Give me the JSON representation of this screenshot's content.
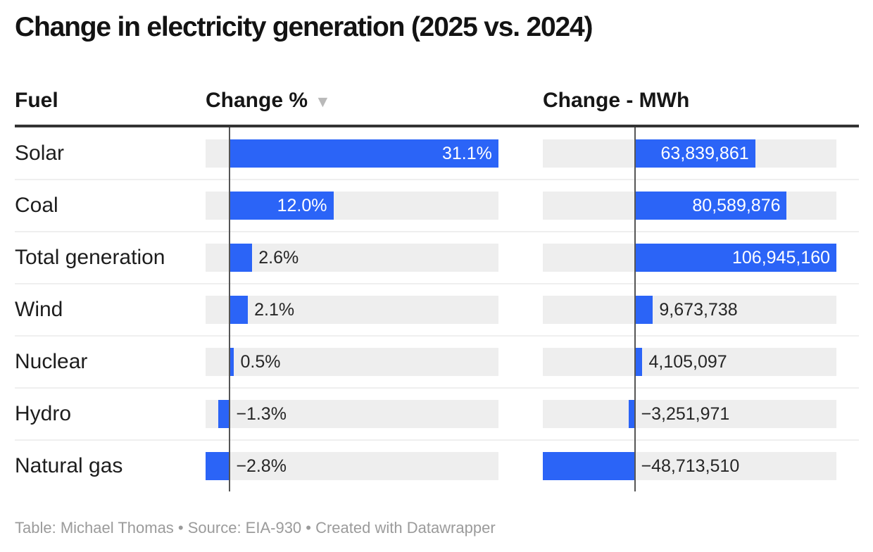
{
  "title": "Change in electricity generation (2025 vs. 2024)",
  "table": {
    "fuel_header": "Fuel",
    "pct_header": "Change %",
    "mwh_header": "Change - MWh",
    "sort_icon": "▼",
    "sorted_by": "Change %",
    "sort_direction": "descending"
  },
  "footer": "Table: Michael Thomas • Source: EIA-930 • Created with Datawrapper",
  "colors": {
    "bar_blue": "#2b64f7",
    "track_gray": "#eeeeee",
    "baseline_gray": "#555555",
    "header_rule": "#333333"
  },
  "chart_data": {
    "type": "bar",
    "orientation": "horizontal",
    "title": "Change in electricity generation (2025 vs. 2024)",
    "categories": [
      "Solar",
      "Coal",
      "Total generation",
      "Wind",
      "Nuclear",
      "Hydro",
      "Natural gas"
    ],
    "series": [
      {
        "name": "Change %",
        "values": [
          31.1,
          12.0,
          2.6,
          2.1,
          0.5,
          -1.3,
          -2.8
        ],
        "labels": [
          "31.1%",
          "12.0%",
          "2.6%",
          "2.1%",
          "0.5%",
          "−1.3%",
          "−2.8%"
        ],
        "xlim": [
          -2.8,
          31.1
        ]
      },
      {
        "name": "Change - MWh",
        "values": [
          63839861,
          80589876,
          106945160,
          9673738,
          4105097,
          -3251971,
          -48713510
        ],
        "labels": [
          "63,839,861",
          "80,589,876",
          "106,945,160",
          "9,673,738",
          "4,105,097",
          "−3,251,971",
          "−48,713,510"
        ],
        "xlim": [
          -48713510,
          106945160
        ]
      }
    ],
    "legend": "none",
    "grid": "zero-baseline-only"
  }
}
